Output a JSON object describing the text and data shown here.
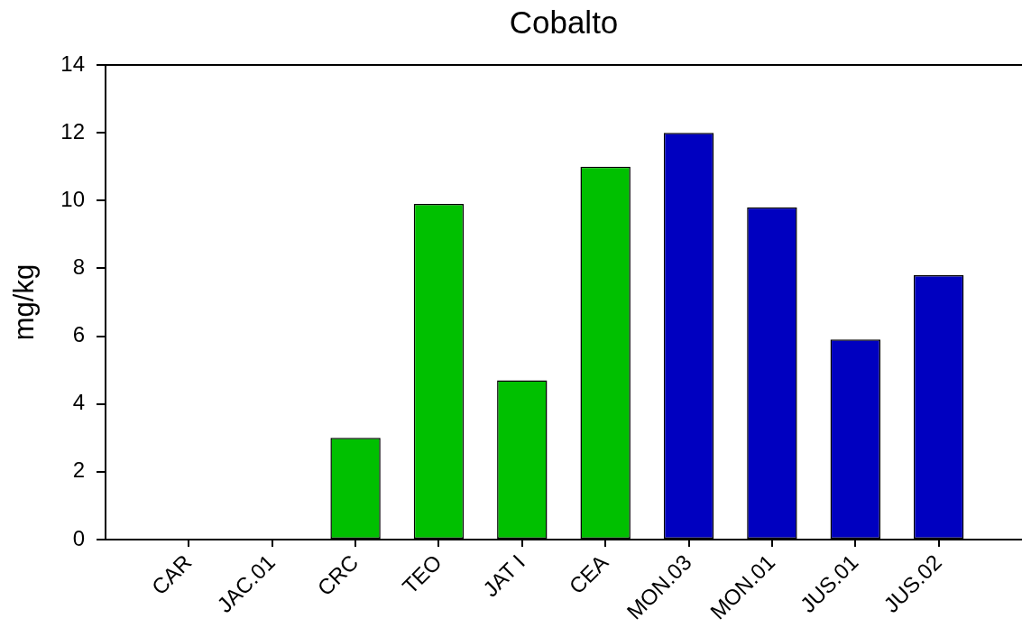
{
  "chart_data": {
    "type": "bar",
    "title": "Cobalto",
    "ylabel": "mg/kg",
    "categories": [
      "CAR",
      "JAC.01",
      "CRC",
      "TEO",
      "JAT I",
      "CEA",
      "MON.03",
      "MON.01",
      "JUS.01",
      "JUS.02"
    ],
    "values": [
      null,
      null,
      3.0,
      9.9,
      4.7,
      11.0,
      12.0,
      9.8,
      5.9,
      7.8
    ],
    "colors": [
      "#00c000",
      "#00c000",
      "#00c000",
      "#00c000",
      "#00c000",
      "#00c000",
      "#0000c0",
      "#0000c0",
      "#0000c0",
      "#0000c0"
    ],
    "ylim": [
      0,
      14
    ],
    "yticks": [
      0,
      2,
      4,
      6,
      8,
      10,
      12,
      14
    ]
  }
}
